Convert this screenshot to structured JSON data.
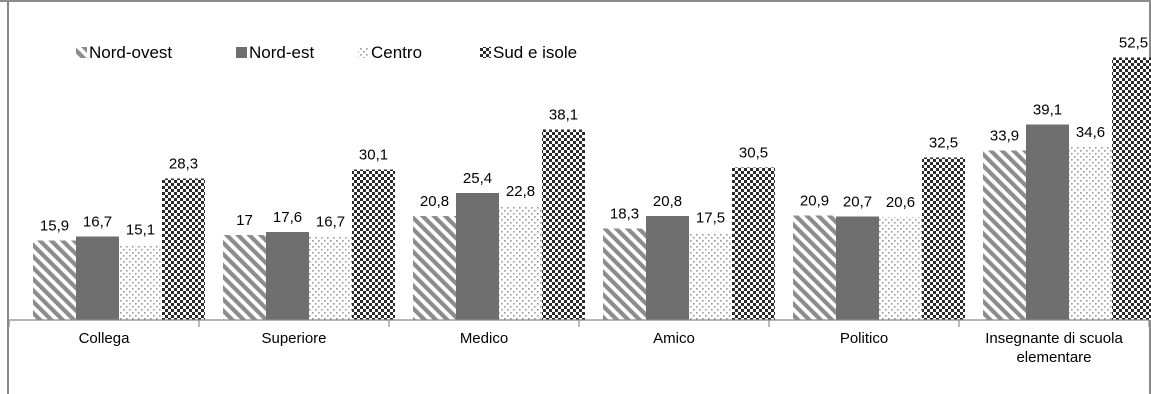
{
  "chart_data": {
    "type": "bar",
    "categories": [
      "Collega",
      "Superiore",
      "Medico",
      "Amico",
      "Politico",
      "Insegnante di scuola elementare"
    ],
    "category_lines": [
      [
        "Collega"
      ],
      [
        "Superiore"
      ],
      [
        "Medico"
      ],
      [
        "Amico"
      ],
      [
        "Politico"
      ],
      [
        "Insegnante di scuola",
        "elementare"
      ]
    ],
    "series": [
      {
        "name": "Nord-ovest",
        "values": [
          15.9,
          17,
          20.8,
          18.3,
          20.9,
          33.9
        ],
        "labels": [
          "15,9",
          "17",
          "20,8",
          "18,3",
          "20,9",
          "33,9"
        ]
      },
      {
        "name": "Nord-est",
        "values": [
          16.7,
          17.6,
          25.4,
          20.8,
          20.7,
          39.1
        ],
        "labels": [
          "16,7",
          "17,6",
          "25,4",
          "20,8",
          "20,7",
          "39,1"
        ]
      },
      {
        "name": "Centro",
        "values": [
          15.1,
          16.7,
          22.8,
          17.5,
          20.6,
          34.6
        ],
        "labels": [
          "15,1",
          "16,7",
          "22,8",
          "17,5",
          "20,6",
          "34,6"
        ]
      },
      {
        "name": "Sud e isole",
        "values": [
          28.3,
          30.1,
          38.1,
          30.5,
          32.5,
          52.5
        ],
        "labels": [
          "28,3",
          "30,1",
          "38,1",
          "30,5",
          "32,5",
          "52,5"
        ]
      }
    ],
    "title": "",
    "xlabel": "",
    "ylabel": "",
    "ylim": [
      0,
      56
    ],
    "grid": false,
    "legend_position": "top-left",
    "colors": [
      "#8c8c8c",
      "#6f6f6f",
      "#9a9a9a",
      "#2b2b2b"
    ]
  }
}
